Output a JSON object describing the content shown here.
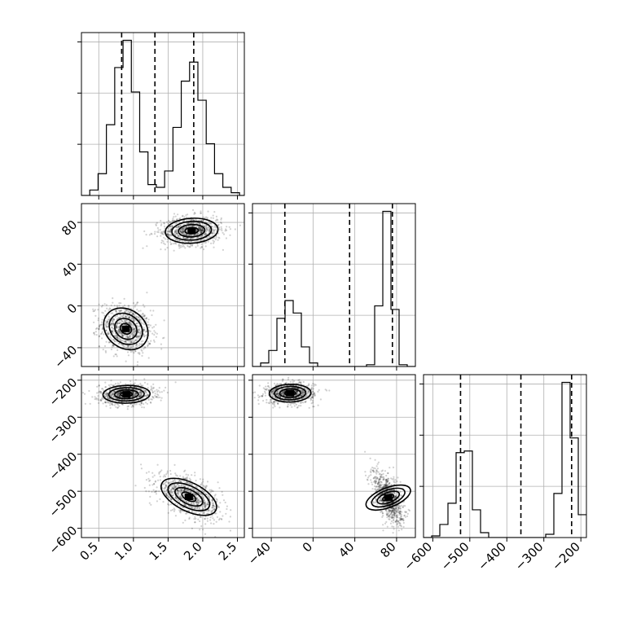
{
  "chart_data": {
    "type": "scatter",
    "variant": "corner plot (pairwise marginal histograms and 2D density contours)",
    "grid": true,
    "parameters": [
      {
        "id": "p0",
        "range": [
          0.25,
          2.6
        ],
        "ticks": [
          0.5,
          1.0,
          1.5,
          2.0,
          2.5
        ],
        "tick_labels": [
          "0.5",
          "1.0",
          "1.5",
          "2.0",
          "2.5"
        ],
        "quantiles": [
          0.83,
          1.31,
          1.87
        ],
        "histogram": {
          "edges": [
            0.25,
            0.37,
            0.49,
            0.61,
            0.73,
            0.85,
            0.97,
            1.09,
            1.21,
            1.33,
            1.45,
            1.57,
            1.69,
            1.81,
            1.93,
            2.05,
            2.17,
            2.29,
            2.41,
            2.53,
            2.65
          ],
          "counts": [
            0,
            2,
            8,
            26,
            47,
            57,
            38,
            16,
            4,
            3,
            9,
            25,
            42,
            49,
            35,
            19,
            8,
            3,
            1,
            0
          ]
        },
        "clusters": [
          {
            "mean": 0.88,
            "sd": 0.17
          },
          {
            "mean": 1.84,
            "sd": 0.19
          }
        ]
      },
      {
        "id": "p1",
        "range": [
          -58,
          98
        ],
        "ticks": [
          -40,
          0,
          40,
          80
        ],
        "tick_labels": [
          "−40",
          "0",
          "40",
          "80"
        ],
        "quantiles": [
          -27,
          35,
          76
        ],
        "histogram": {
          "edges": [
            -58,
            -50.2,
            -42.4,
            -34.6,
            -26.8,
            -19,
            -11.2,
            -3.4,
            4.4,
            12.2,
            20,
            27.8,
            35.6,
            43.4,
            51.2,
            59,
            66.8,
            74.6,
            82.4,
            90.2,
            98
          ],
          "counts": [
            0,
            2,
            9,
            27,
            37,
            30,
            11,
            2,
            0,
            0,
            0,
            0,
            0,
            0,
            1,
            34,
            87,
            32,
            1,
            0
          ]
        },
        "clusters": [
          {
            "mean": -22,
            "sd": 11
          },
          {
            "mean": 72,
            "sd": 6
          }
        ]
      },
      {
        "id": "p2",
        "range": [
          -625,
          -185
        ],
        "ticks": [
          -600,
          -500,
          -400,
          -300,
          -200
        ],
        "tick_labels": [
          "−600",
          "−500",
          "−400",
          "−300",
          "−200"
        ],
        "quantiles": [
          -525,
          -362,
          -225
        ],
        "histogram": {
          "edges": [
            -625,
            -603,
            -581,
            -559,
            -537,
            -515,
            -493,
            -471,
            -449,
            -427,
            -405,
            -383,
            -361,
            -339,
            -317,
            -295,
            -273,
            -251,
            -229,
            -207,
            -185
          ],
          "counts": [
            0,
            1,
            8,
            21,
            52,
            53,
            17,
            3,
            0,
            0,
            0,
            0,
            0,
            0,
            0,
            2,
            27,
            95,
            61,
            14
          ]
        },
        "clusters": [
          {
            "mean": -520,
            "sd": 28
          },
          {
            "mean": -233,
            "sd": 14
          }
        ]
      }
    ],
    "pair_panels": [
      {
        "x": "p0",
        "y": "p1",
        "modes": [
          {
            "cx": 0.89,
            "cy": -22,
            "sx": 0.16,
            "sy": 10,
            "rho": -0.2
          },
          {
            "cx": 1.84,
            "cy": 72,
            "sx": 0.19,
            "sy": 6,
            "rho": 0.1
          }
        ]
      },
      {
        "x": "p0",
        "y": "p2",
        "modes": [
          {
            "cx": 0.9,
            "cy": -238,
            "sx": 0.17,
            "sy": 12,
            "rho": 0.05
          },
          {
            "cx": 1.8,
            "cy": -515,
            "sx": 0.2,
            "sy": 25,
            "rho": -0.55
          }
        ]
      },
      {
        "x": "p1",
        "y": "p2",
        "modes": [
          {
            "cx": -22,
            "cy": -235,
            "sx": 10,
            "sy": 12,
            "rho": 0.05
          },
          {
            "cx": 72,
            "cy": -517,
            "sx": 6,
            "sy": 30,
            "rho": -0.55
          }
        ]
      }
    ]
  }
}
